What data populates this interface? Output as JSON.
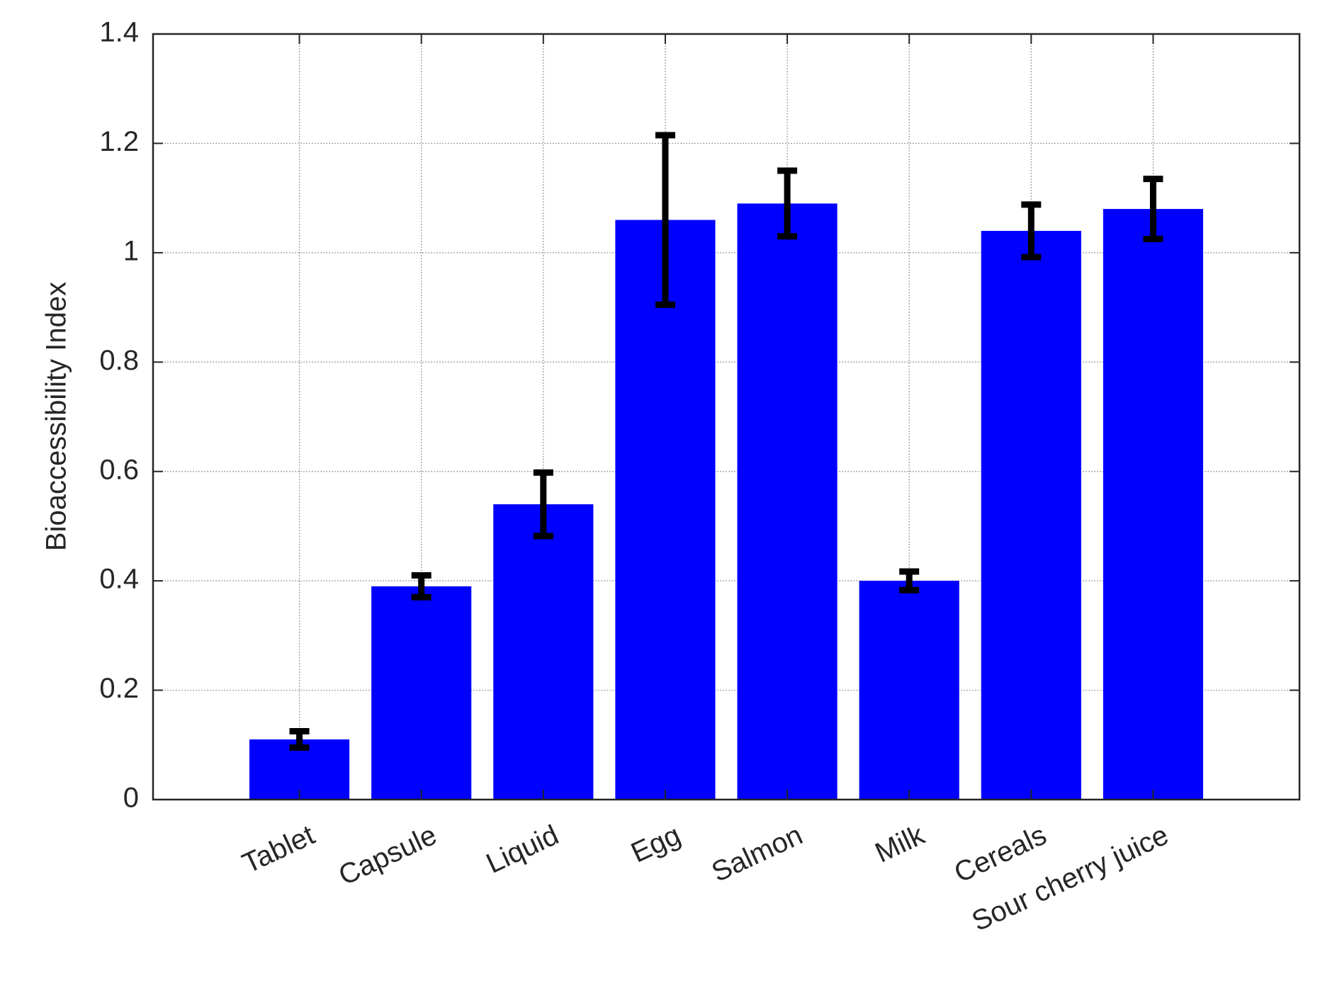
{
  "chart_data": {
    "type": "bar",
    "y_label": "Bioaccessibility Index",
    "categories": [
      "Tablet",
      "Capsule",
      "Liquid",
      "Egg",
      "Salmon",
      "Milk",
      "Cereals",
      "Sour cherry juice"
    ],
    "values": [
      0.11,
      0.39,
      0.54,
      1.06,
      1.09,
      0.4,
      1.04,
      1.08
    ],
    "errors": [
      0.015,
      0.02,
      0.058,
      0.155,
      0.06,
      0.017,
      0.048,
      0.055
    ],
    "color": "#0000ff",
    "error_color": "#000000",
    "ylim": [
      0,
      1.4
    ],
    "yticks": [
      0,
      0.2,
      0.4,
      0.6,
      0.8,
      1,
      1.2,
      1.4
    ],
    "grid": true
  }
}
